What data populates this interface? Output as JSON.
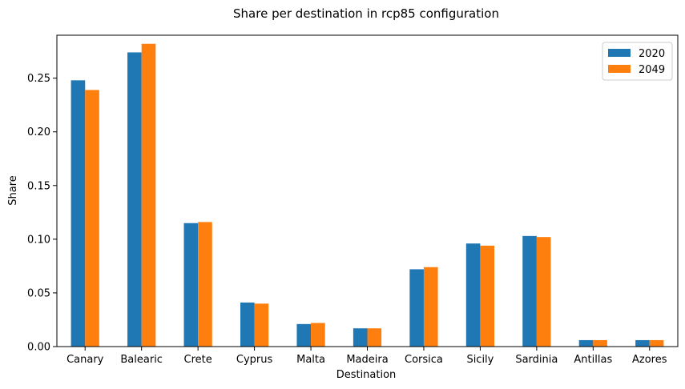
{
  "chart_data": {
    "type": "bar",
    "title": "Share per destination in rcp85 configuration",
    "xlabel": "Destination",
    "ylabel": "Share",
    "ylim": [
      0,
      0.29
    ],
    "yticks": [
      "0.00",
      "0.05",
      "0.10",
      "0.15",
      "0.20",
      "0.25"
    ],
    "grid": false,
    "legend_position": "top-right",
    "categories": [
      "Canary",
      "Balearic",
      "Crete",
      "Cyprus",
      "Malta",
      "Madeira",
      "Corsica",
      "Sicily",
      "Sardinia",
      "Antillas",
      "Azores"
    ],
    "series": [
      {
        "name": "2020",
        "color": "#1f77b4",
        "values": [
          0.248,
          0.274,
          0.115,
          0.041,
          0.021,
          0.017,
          0.072,
          0.096,
          0.103,
          0.006,
          0.006
        ]
      },
      {
        "name": "2049",
        "color": "#ff7f0e",
        "values": [
          0.239,
          0.282,
          0.116,
          0.04,
          0.022,
          0.017,
          0.074,
          0.094,
          0.102,
          0.006,
          0.006
        ]
      }
    ]
  }
}
